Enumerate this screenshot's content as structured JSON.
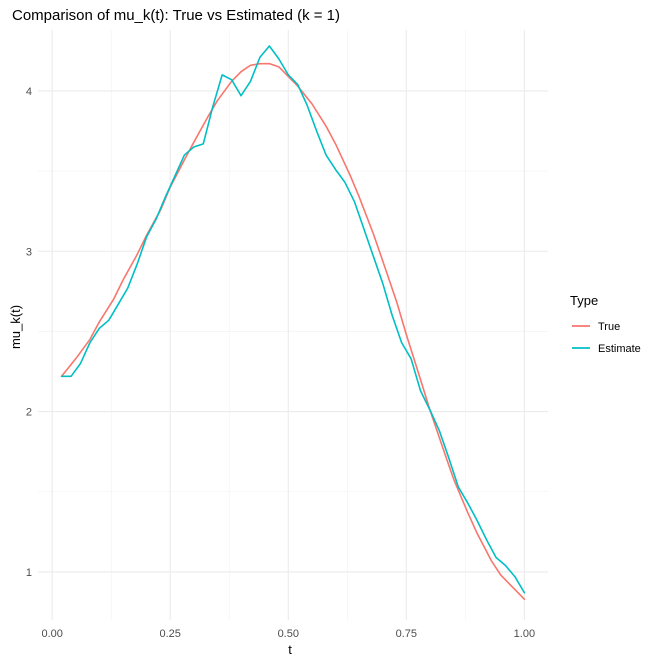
{
  "chart_data": {
    "type": "line",
    "title": "Comparison of mu_k(t): True vs Estimated (k = 1)",
    "xlabel": "t",
    "ylabel": "mu_k(t)",
    "xlim": [
      -0.03,
      1.05
    ],
    "ylim": [
      0.7,
      4.38
    ],
    "x_ticks": [
      0.0,
      0.25,
      0.5,
      0.75,
      1.0
    ],
    "x_tick_labels": [
      "0.00",
      "0.25",
      "0.50",
      "0.75",
      "1.00"
    ],
    "y_ticks": [
      1,
      2,
      3,
      4
    ],
    "y_tick_labels": [
      "1",
      "2",
      "3",
      "4"
    ],
    "grid": true,
    "legend": {
      "title": "Type",
      "position": "right"
    },
    "series": [
      {
        "name": "True",
        "color": "#F8766D",
        "x": [
          0.02,
          0.05,
          0.08,
          0.1,
          0.13,
          0.15,
          0.18,
          0.2,
          0.23,
          0.25,
          0.28,
          0.3,
          0.33,
          0.35,
          0.38,
          0.4,
          0.42,
          0.44,
          0.46,
          0.48,
          0.5,
          0.52,
          0.55,
          0.58,
          0.6,
          0.63,
          0.65,
          0.68,
          0.7,
          0.73,
          0.75,
          0.78,
          0.8,
          0.83,
          0.85,
          0.88,
          0.9,
          0.93,
          0.95,
          0.98,
          1.0
        ],
        "values": [
          2.22,
          2.33,
          2.45,
          2.56,
          2.7,
          2.82,
          2.98,
          3.1,
          3.26,
          3.4,
          3.57,
          3.68,
          3.84,
          3.94,
          4.06,
          4.12,
          4.16,
          4.17,
          4.17,
          4.15,
          4.09,
          4.03,
          3.92,
          3.78,
          3.67,
          3.48,
          3.34,
          3.11,
          2.94,
          2.68,
          2.48,
          2.2,
          2.01,
          1.75,
          1.58,
          1.37,
          1.24,
          1.07,
          0.98,
          0.89,
          0.83
        ]
      },
      {
        "name": "Estimate",
        "color": "#00BFC4",
        "x": [
          0.02,
          0.04,
          0.06,
          0.08,
          0.1,
          0.12,
          0.14,
          0.16,
          0.18,
          0.2,
          0.22,
          0.24,
          0.26,
          0.28,
          0.3,
          0.32,
          0.34,
          0.36,
          0.38,
          0.4,
          0.42,
          0.44,
          0.46,
          0.48,
          0.5,
          0.52,
          0.54,
          0.56,
          0.58,
          0.6,
          0.62,
          0.64,
          0.66,
          0.68,
          0.7,
          0.72,
          0.74,
          0.76,
          0.78,
          0.8,
          0.82,
          0.84,
          0.86,
          0.88,
          0.9,
          0.92,
          0.94,
          0.96,
          0.98,
          1.0
        ],
        "values": [
          2.22,
          2.22,
          2.3,
          2.43,
          2.52,
          2.57,
          2.67,
          2.77,
          2.92,
          3.09,
          3.2,
          3.34,
          3.47,
          3.6,
          3.65,
          3.67,
          3.9,
          4.1,
          4.07,
          3.97,
          4.06,
          4.21,
          4.28,
          4.2,
          4.1,
          4.04,
          3.91,
          3.75,
          3.6,
          3.51,
          3.43,
          3.31,
          3.14,
          2.97,
          2.8,
          2.6,
          2.43,
          2.33,
          2.13,
          2.01,
          1.88,
          1.71,
          1.53,
          1.43,
          1.32,
          1.2,
          1.09,
          1.04,
          0.97,
          0.87
        ]
      }
    ]
  }
}
